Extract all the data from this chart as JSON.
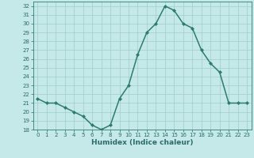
{
  "x": [
    0,
    1,
    2,
    3,
    4,
    5,
    6,
    7,
    8,
    9,
    10,
    11,
    12,
    13,
    14,
    15,
    16,
    17,
    18,
    19,
    20,
    21,
    22,
    23
  ],
  "y": [
    21.5,
    21.0,
    21.0,
    20.5,
    20.0,
    19.5,
    18.5,
    18.0,
    18.5,
    21.5,
    23.0,
    26.5,
    29.0,
    30.0,
    32.0,
    31.5,
    30.0,
    29.5,
    27.0,
    25.5,
    24.5,
    21.0,
    21.0,
    21.0
  ],
  "line_color": "#2d7d6e",
  "marker": "D",
  "marker_size": 2.0,
  "bg_color": "#c5e8e8",
  "grid_color": "#a0cccc",
  "xlabel": "Humidex (Indice chaleur)",
  "xlim": [
    -0.5,
    23.5
  ],
  "ylim": [
    18,
    32.5
  ],
  "yticks": [
    18,
    19,
    20,
    21,
    22,
    23,
    24,
    25,
    26,
    27,
    28,
    29,
    30,
    31,
    32
  ],
  "xticks": [
    0,
    1,
    2,
    3,
    4,
    5,
    6,
    7,
    8,
    9,
    10,
    11,
    12,
    13,
    14,
    15,
    16,
    17,
    18,
    19,
    20,
    21,
    22,
    23
  ],
  "tick_fontsize": 5.0,
  "xlabel_fontsize": 6.5,
  "line_width": 1.1,
  "tick_color": "#2d6b6b",
  "spine_color": "#2d7d6e"
}
